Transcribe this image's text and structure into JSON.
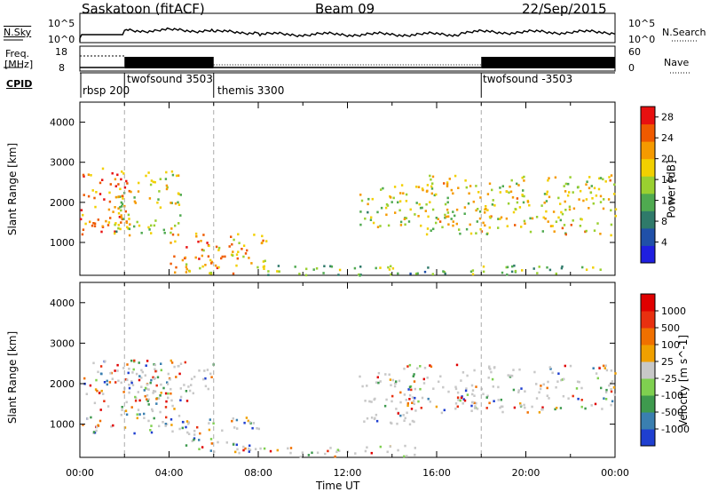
{
  "header": {
    "station": "Saskatoon (fitACF)",
    "beam": "Beam 09",
    "date": "22/Sep/2015"
  },
  "noise_panel": {
    "left_label": "N.Sky",
    "right_label": "N.Search",
    "left_ticks": [
      "10^5",
      "10^0"
    ],
    "right_ticks": [
      "10^5",
      "10^0"
    ]
  },
  "freq_panel": {
    "left_label_1": "Freq.",
    "left_label_2": "[MHz]",
    "left_ticks": [
      "18",
      "8"
    ],
    "right_label": "Nave",
    "right_ticks": [
      "60",
      "0"
    ]
  },
  "cpid": {
    "label": "CPID",
    "segments": [
      {
        "name": "rbsp 200",
        "start_hour": 0.0
      },
      {
        "name": "twofsound 3503",
        "start_hour": 2.0
      },
      {
        "name": "themis 3300",
        "start_hour": 6.0
      },
      {
        "name": "twofsound -3503",
        "start_hour": 18.0
      }
    ]
  },
  "chart_data": [
    {
      "type": "heatmap",
      "title": "",
      "ylabel": "Slant Range [km]",
      "xlabel": "",
      "xlim": [
        0,
        24
      ],
      "ylim": [
        180,
        4500
      ],
      "y_ticks": [
        1000,
        2000,
        3000,
        4000
      ],
      "colorbar": {
        "label": "Power [dB]",
        "range": [
          0,
          30
        ],
        "ticks": [
          "4",
          "8",
          "12",
          "16",
          "20",
          "24",
          "28"
        ],
        "colors": [
          "#1f1fe0",
          "#2050a8",
          "#2f7a6a",
          "#4faa50",
          "#9ad030",
          "#f2d000",
          "#f59a00",
          "#ef5a00",
          "#e81010"
        ]
      },
      "echo_regions_description": "bands of scatter between ~400-3000 km",
      "regions": [
        {
          "t0": 0.0,
          "t1": 2.2,
          "r0": 1100,
          "r1": 2900,
          "level": 0.85
        },
        {
          "t0": 1.5,
          "t1": 4.5,
          "r0": 1200,
          "r1": 2800,
          "level": 0.55
        },
        {
          "t0": 4.0,
          "t1": 8.5,
          "r0": 250,
          "r1": 1300,
          "level": 0.75
        },
        {
          "t0": 7.5,
          "t1": 24.0,
          "r0": 200,
          "r1": 450,
          "level": 0.4
        },
        {
          "t0": 12.5,
          "t1": 16.5,
          "r0": 1400,
          "r1": 2500,
          "level": 0.55
        },
        {
          "t0": 15.5,
          "t1": 24.0,
          "r0": 1200,
          "r1": 2700,
          "level": 0.6
        }
      ]
    },
    {
      "type": "heatmap",
      "title": "",
      "ylabel": "Slant Range [km]",
      "xlabel": "Time UT",
      "xlim": [
        0,
        24
      ],
      "ylim": [
        180,
        4500
      ],
      "y_ticks": [
        1000,
        2000,
        3000,
        4000
      ],
      "x_ticks": [
        "00:00",
        "04:00",
        "08:00",
        "12:00",
        "16:00",
        "20:00",
        "00:00"
      ],
      "colorbar": {
        "label": "Velocity [m s^-1]",
        "ticks": [
          "1000",
          "500",
          "100",
          "25",
          "-25",
          "-100",
          "-500",
          "-1000"
        ],
        "colors": [
          "#1f3fd0",
          "#3a7fb0",
          "#3e9a4e",
          "#7fd050",
          "#c8c8c8",
          "#f0a000",
          "#f07000",
          "#e83010",
          "#e00000"
        ]
      },
      "regions": [
        {
          "t0": 0.0,
          "t1": 4.5,
          "r0": 800,
          "r1": 2600,
          "level": 0.3
        },
        {
          "t0": 2.0,
          "t1": 6.0,
          "r0": 1600,
          "r1": 2600,
          "level": 0.5
        },
        {
          "t0": 4.5,
          "t1": 8.0,
          "r0": 300,
          "r1": 1200,
          "level": 0.35
        },
        {
          "t0": 7.0,
          "t1": 15.0,
          "r0": 200,
          "r1": 500,
          "level": 0.6
        },
        {
          "t0": 12.5,
          "t1": 15.0,
          "r0": 1000,
          "r1": 2300,
          "level": 0.7
        },
        {
          "t0": 14.5,
          "t1": 24.0,
          "r0": 1300,
          "r1": 2500,
          "level": 0.5
        }
      ]
    }
  ],
  "time_axis_label": "Time UT"
}
